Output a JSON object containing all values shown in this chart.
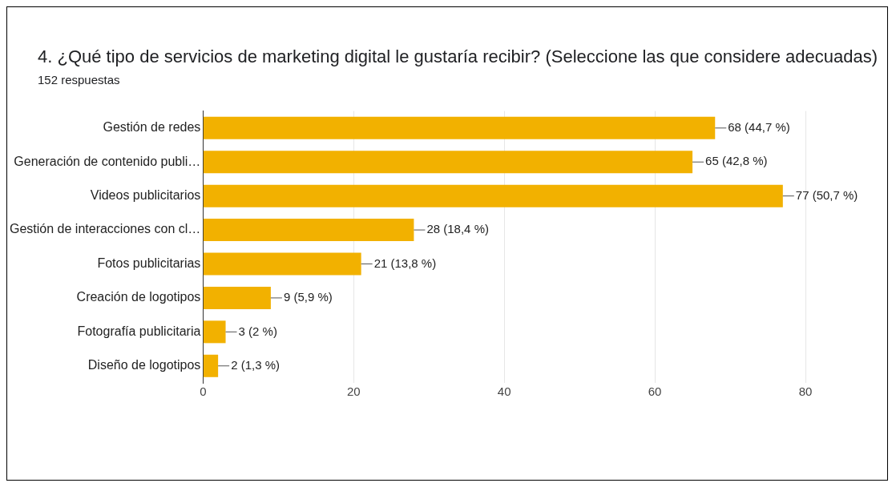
{
  "chart_data": {
    "type": "bar",
    "orientation": "horizontal",
    "title": "4.  ¿Qué tipo de servicios de marketing digital le gustaría recibir?  (Seleccione las que considere adecuadas)",
    "subtitle": "152 respuestas",
    "categories": [
      "Gestión de redes",
      "Generación de contenido publi…",
      "Videos publicitarios",
      "Gestión de interacciones con cl…",
      "Fotos publicitarias",
      "Creación de logotipos",
      "Fotografía publicitaria",
      "Diseño de logotipos"
    ],
    "values": [
      68,
      65,
      77,
      28,
      21,
      9,
      3,
      2
    ],
    "value_labels": [
      "68 (44,7 %)",
      "65 (42,8 %)",
      "77 (50,7 %)",
      "28 (18,4 %)",
      "21 (13,8 %)",
      "9 (5,9 %)",
      "3 (2 %)",
      "2 (1,3 %)"
    ],
    "color": "#f2b100",
    "xlim": [
      0,
      80
    ],
    "xticks": [
      0,
      20,
      40,
      60,
      80
    ],
    "grid": "x",
    "legend": false
  }
}
